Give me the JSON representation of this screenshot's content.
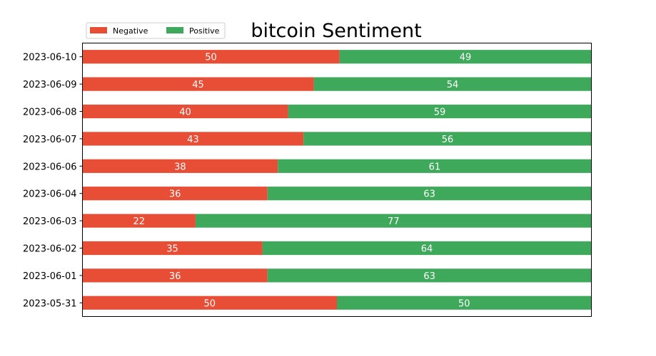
{
  "chart_data": {
    "type": "bar",
    "orientation": "horizontal",
    "stacked": true,
    "normalized": true,
    "title": "bitcoin Sentiment",
    "xlabel": "",
    "ylabel": "",
    "categories": [
      "2023-05-31",
      "2023-06-01",
      "2023-06-02",
      "2023-06-03",
      "2023-06-04",
      "2023-06-06",
      "2023-06-07",
      "2023-06-08",
      "2023-06-09",
      "2023-06-10"
    ],
    "series": [
      {
        "name": "Negative",
        "color": "#e84d36",
        "values": [
          50,
          36,
          35,
          22,
          36,
          38,
          43,
          40,
          45,
          50
        ]
      },
      {
        "name": "Positive",
        "color": "#3fa95b",
        "values": [
          50,
          63,
          64,
          77,
          63,
          61,
          56,
          59,
          54,
          49
        ]
      }
    ],
    "legend_position": "top-left",
    "grid": false,
    "x_ticks_visible": false
  }
}
